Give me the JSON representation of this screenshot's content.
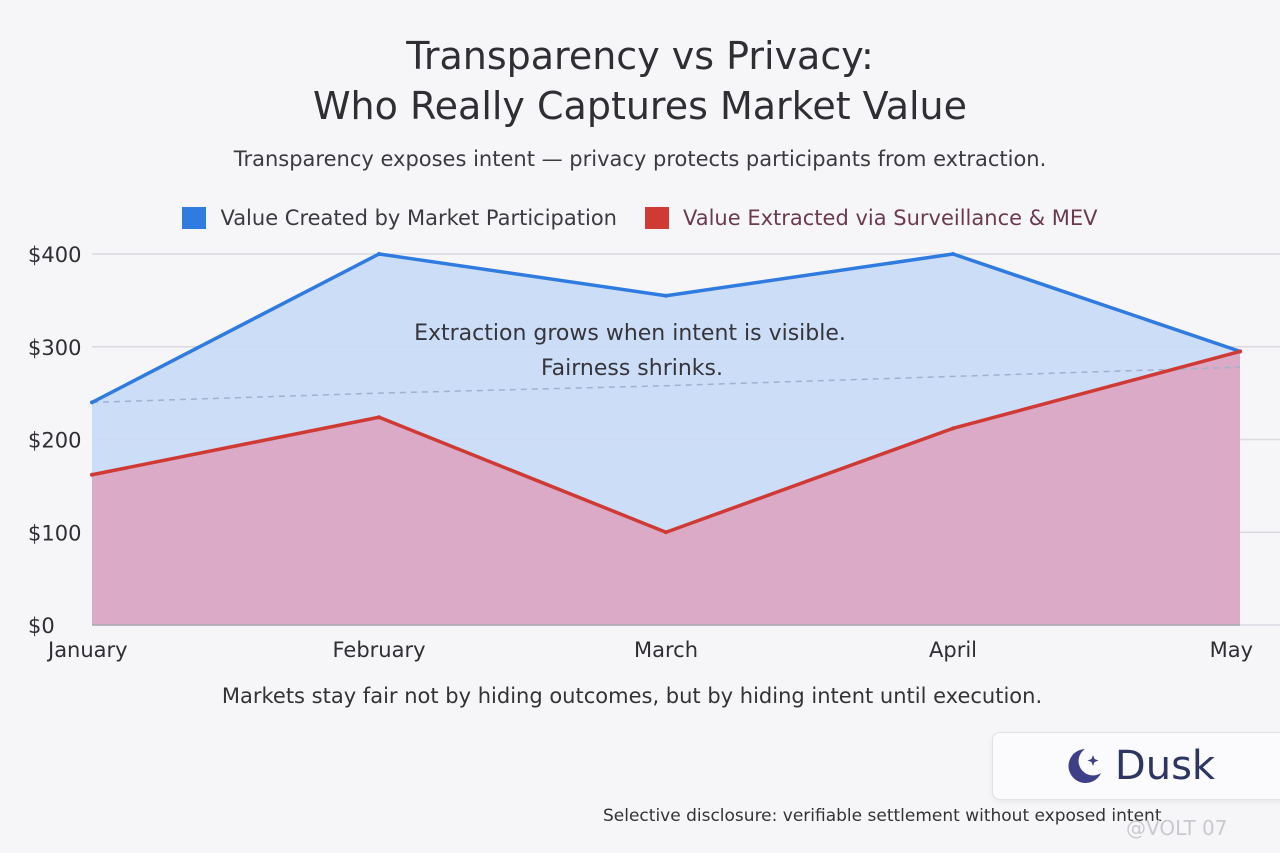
{
  "chart_data": {
    "type": "area",
    "title_line1": "Transparency vs Privacy:",
    "title_line2": "Who Really Captures Market Value",
    "subtitle": "Transparency exposes intent — privacy protects participants from extraction.",
    "categories": [
      "January",
      "February",
      "March",
      "April",
      "May"
    ],
    "series": [
      {
        "name": "Value Created by Market Participation",
        "values": [
          240,
          400,
          355,
          400,
          295
        ],
        "color": "#2f7be0",
        "fill": "#c9dbf7"
      },
      {
        "name": "Value Extracted via Surveillance & MEV",
        "values": [
          162,
          224,
          100,
          212,
          295
        ],
        "color": "#d03a34",
        "fill": "#dca5c1"
      }
    ],
    "trend_line": {
      "values": [
        240,
        250,
        258,
        268,
        278
      ],
      "style": "dashed"
    },
    "y_ticks": [
      {
        "value": 0,
        "label": "$0"
      },
      {
        "value": 100,
        "label": "$100"
      },
      {
        "value": 200,
        "label": "$200"
      },
      {
        "value": 300,
        "label": "$300"
      },
      {
        "value": 400,
        "label": "$400"
      }
    ],
    "ylim": [
      0,
      400
    ],
    "grid": true,
    "legend_position": "top",
    "annotation_line1": "Extraction grows when intent is visible.",
    "annotation_line2": "Fairness shrinks."
  },
  "footer_note": "Markets stay fair not by hiding outcomes, but by hiding intent until execution.",
  "logo": {
    "text": "Dusk"
  },
  "disclosure": "Selective disclosure: verifiable settlement without exposed intent",
  "watermark": "@VOLT 07"
}
